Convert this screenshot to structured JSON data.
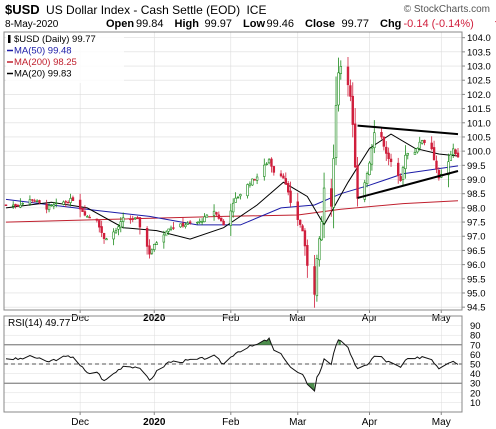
{
  "header": {
    "symbol": "$USD",
    "name": "US Dollar Index - Cash Settle (EOD)",
    "exchange": "ICE",
    "date": "8-May-2020",
    "ohlc": [
      {
        "label": "Open",
        "value": "99.84"
      },
      {
        "label": "High",
        "value": "99.97"
      },
      {
        "label": "Low",
        "value": "99.46"
      },
      {
        "label": "Close",
        "value": "99.77"
      },
      {
        "label": "Chg",
        "value": "-0.14 (-0.14%)"
      }
    ],
    "chg_direction": "down",
    "watermark": "© StockCharts.com"
  },
  "legend": [
    {
      "label": "$USD (Daily) 99.77",
      "color": "#000000",
      "swatch": "candle"
    },
    {
      "label": "MA(50) 99.48",
      "color": "#1c1ca8",
      "swatch": "line"
    },
    {
      "label": "MA(200) 98.25",
      "color": "#c0202e",
      "swatch": "line"
    },
    {
      "label": "MA(20) 99.83",
      "color": "#000000",
      "swatch": "line"
    }
  ],
  "colors": {
    "up": "#1a8a1a",
    "down": "#d01e3c",
    "ma50": "#1c1ca8",
    "ma200": "#c0202e",
    "ma20": "#000000",
    "rsi": "#111111",
    "rsi_fill": "#2e7a2e",
    "grid": "#dcdcdc"
  },
  "x_axis": {
    "labels": [
      {
        "text": "Dec",
        "x": "2019-12-02",
        "bold": false
      },
      {
        "text": "2020",
        "x": "2020-01-02",
        "bold": true
      },
      {
        "text": "Feb",
        "x": "2020-02-03",
        "bold": false
      },
      {
        "text": "Mar",
        "x": "2020-03-02",
        "bold": false
      },
      {
        "text": "Apr",
        "x": "2020-04-01",
        "bold": false
      },
      {
        "text": "May",
        "x": "2020-05-01",
        "bold": false
      }
    ]
  },
  "chart_data": [
    {
      "type": "candlestick",
      "title": "$USD (Daily) 99.77",
      "x_range": [
        "2019-11-01",
        "2020-05-08"
      ],
      "ylim": [
        94.4,
        104.2
      ],
      "y_ticks": [
        94.5,
        95.0,
        95.5,
        96.0,
        96.5,
        97.0,
        97.5,
        98.0,
        98.5,
        99.0,
        99.5,
        100.0,
        100.5,
        101.0,
        101.5,
        102.0,
        102.5,
        103.0,
        103.5,
        104.0
      ],
      "y_tick_labels": [
        "94.5",
        "95.0",
        "95.5",
        "96.0",
        "96.5",
        "97.0",
        "97.5",
        "98.0",
        "98.5",
        "99.0",
        "99.5",
        "100.0",
        "100.5",
        "101.0",
        "101.5",
        "102.0",
        "102.5",
        "103.0",
        "103.5",
        "104.0"
      ],
      "grid": true,
      "close_path": [
        [
          "2019-11-01",
          98.1
        ],
        [
          "2019-11-06",
          98.1
        ],
        [
          "2019-11-12",
          98.3
        ],
        [
          "2019-11-18",
          98.0
        ],
        [
          "2019-11-25",
          98.2
        ],
        [
          "2019-11-29",
          98.3
        ],
        [
          "2019-12-05",
          97.7
        ],
        [
          "2019-12-09",
          97.6
        ],
        [
          "2019-12-12",
          96.9
        ],
        [
          "2019-12-17",
          97.2
        ],
        [
          "2019-12-20",
          97.6
        ],
        [
          "2019-12-26",
          97.6
        ],
        [
          "2019-12-31",
          96.4
        ],
        [
          "2020-01-03",
          96.8
        ],
        [
          "2020-01-08",
          97.3
        ],
        [
          "2020-01-14",
          97.4
        ],
        [
          "2020-01-21",
          97.5
        ],
        [
          "2020-01-27",
          97.9
        ],
        [
          "2020-01-31",
          97.4
        ],
        [
          "2020-02-05",
          98.3
        ],
        [
          "2020-02-11",
          98.9
        ],
        [
          "2020-02-14",
          99.1
        ],
        [
          "2020-02-19",
          99.7
        ],
        [
          "2020-02-21",
          99.3
        ],
        [
          "2020-02-25",
          99.1
        ],
        [
          "2020-02-28",
          98.2
        ],
        [
          "2020-03-04",
          97.2
        ],
        [
          "2020-03-06",
          96.0
        ],
        [
          "2020-03-09",
          95.0
        ],
        [
          "2020-03-10",
          96.2
        ],
        [
          "2020-03-12",
          97.5
        ],
        [
          "2020-03-13",
          98.7
        ],
        [
          "2020-03-16",
          98.0
        ],
        [
          "2020-03-17",
          99.8
        ],
        [
          "2020-03-18",
          101.6
        ],
        [
          "2020-03-19",
          102.8
        ],
        [
          "2020-03-20",
          103.0
        ],
        [
          "2020-03-23",
          102.4
        ],
        [
          "2020-03-24",
          101.9
        ],
        [
          "2020-03-25",
          100.9
        ],
        [
          "2020-03-26",
          99.4
        ],
        [
          "2020-03-27",
          98.3
        ],
        [
          "2020-03-30",
          98.9
        ],
        [
          "2020-04-01",
          99.6
        ],
        [
          "2020-04-03",
          100.7
        ],
        [
          "2020-04-06",
          100.5
        ],
        [
          "2020-04-08",
          99.9
        ],
        [
          "2020-04-10",
          99.6
        ],
        [
          "2020-04-14",
          98.9
        ],
        [
          "2020-04-16",
          99.9
        ],
        [
          "2020-04-20",
          100.0
        ],
        [
          "2020-04-23",
          100.4
        ],
        [
          "2020-04-27",
          100.1
        ],
        [
          "2020-04-30",
          99.0
        ],
        [
          "2020-05-04",
          99.6
        ],
        [
          "2020-05-06",
          100.1
        ],
        [
          "2020-05-08",
          99.77
        ]
      ],
      "ma50_path": [
        [
          "2019-11-01",
          98.3
        ],
        [
          "2019-11-20",
          98.1
        ],
        [
          "2019-12-10",
          97.9
        ],
        [
          "2019-12-31",
          97.7
        ],
        [
          "2020-01-20",
          97.4
        ],
        [
          "2020-02-07",
          97.4
        ],
        [
          "2020-02-24",
          98.0
        ],
        [
          "2020-03-09",
          98.1
        ],
        [
          "2020-03-20",
          98.5
        ],
        [
          "2020-04-01",
          98.8
        ],
        [
          "2020-04-15",
          99.2
        ],
        [
          "2020-05-08",
          99.48
        ]
      ],
      "ma200_path": [
        [
          "2019-11-01",
          97.5
        ],
        [
          "2019-12-16",
          97.6
        ],
        [
          "2020-01-31",
          97.7
        ],
        [
          "2020-03-02",
          97.75
        ],
        [
          "2020-03-20",
          97.95
        ],
        [
          "2020-04-15",
          98.15
        ],
        [
          "2020-05-08",
          98.25
        ]
      ],
      "ma20_path": [
        [
          "2019-11-01",
          98.0
        ],
        [
          "2019-11-20",
          98.2
        ],
        [
          "2019-12-05",
          98.0
        ],
        [
          "2019-12-20",
          97.3
        ],
        [
          "2020-01-03",
          97.2
        ],
        [
          "2020-01-17",
          96.9
        ],
        [
          "2020-01-31",
          97.3
        ],
        [
          "2020-02-14",
          98.1
        ],
        [
          "2020-02-25",
          98.9
        ],
        [
          "2020-03-06",
          98.4
        ],
        [
          "2020-03-13",
          97.4
        ],
        [
          "2020-03-23",
          98.9
        ],
        [
          "2020-04-01",
          100.1
        ],
        [
          "2020-04-10",
          100.6
        ],
        [
          "2020-04-20",
          100.1
        ],
        [
          "2020-04-30",
          99.9
        ],
        [
          "2020-05-08",
          99.83
        ]
      ],
      "trendlines": [
        {
          "from": [
            "2020-03-27",
            100.9
          ],
          "to": [
            "2020-05-08",
            100.6
          ]
        },
        {
          "from": [
            "2020-03-27",
            98.35
          ],
          "to": [
            "2020-05-08",
            99.3
          ]
        }
      ]
    },
    {
      "type": "line",
      "title": "RSI(14) 49.77",
      "x_range": [
        "2019-11-01",
        "2020-05-08"
      ],
      "ylim": [
        0,
        100
      ],
      "y_ticks": [
        10,
        20,
        30,
        40,
        50,
        60,
        70,
        80,
        90
      ],
      "y_tick_labels": [
        "10",
        "20",
        "30",
        "40",
        "50",
        "60",
        "70",
        "80",
        "90"
      ],
      "reference_lines": [
        30,
        50,
        70
      ],
      "grid": true,
      "rsi_path": [
        [
          "2019-11-01",
          56
        ],
        [
          "2019-11-06",
          55
        ],
        [
          "2019-11-12",
          58
        ],
        [
          "2019-11-18",
          52
        ],
        [
          "2019-11-25",
          57
        ],
        [
          "2019-11-29",
          58
        ],
        [
          "2019-12-05",
          40
        ],
        [
          "2019-12-09",
          42
        ],
        [
          "2019-12-12",
          32
        ],
        [
          "2019-12-17",
          42
        ],
        [
          "2019-12-20",
          48
        ],
        [
          "2019-12-26",
          47
        ],
        [
          "2019-12-31",
          33
        ],
        [
          "2020-01-03",
          42
        ],
        [
          "2020-01-08",
          52
        ],
        [
          "2020-01-14",
          53
        ],
        [
          "2020-01-21",
          55
        ],
        [
          "2020-01-27",
          58
        ],
        [
          "2020-01-31",
          50
        ],
        [
          "2020-02-05",
          62
        ],
        [
          "2020-02-11",
          68
        ],
        [
          "2020-02-14",
          70
        ],
        [
          "2020-02-19",
          76
        ],
        [
          "2020-02-21",
          64
        ],
        [
          "2020-02-25",
          58
        ],
        [
          "2020-02-28",
          46
        ],
        [
          "2020-03-04",
          38
        ],
        [
          "2020-03-06",
          30
        ],
        [
          "2020-03-09",
          23
        ],
        [
          "2020-03-10",
          36
        ],
        [
          "2020-03-12",
          46
        ],
        [
          "2020-03-13",
          56
        ],
        [
          "2020-03-16",
          50
        ],
        [
          "2020-03-17",
          62
        ],
        [
          "2020-03-18",
          70
        ],
        [
          "2020-03-19",
          74
        ],
        [
          "2020-03-20",
          73
        ],
        [
          "2020-03-23",
          66
        ],
        [
          "2020-03-24",
          61
        ],
        [
          "2020-03-25",
          56
        ],
        [
          "2020-03-26",
          48
        ],
        [
          "2020-03-27",
          44
        ],
        [
          "2020-03-30",
          48
        ],
        [
          "2020-04-01",
          52
        ],
        [
          "2020-04-03",
          58
        ],
        [
          "2020-04-06",
          57
        ],
        [
          "2020-04-08",
          53
        ],
        [
          "2020-04-10",
          51
        ],
        [
          "2020-04-14",
          46
        ],
        [
          "2020-04-16",
          54
        ],
        [
          "2020-04-20",
          55
        ],
        [
          "2020-04-23",
          58
        ],
        [
          "2020-04-27",
          55
        ],
        [
          "2020-04-30",
          46
        ],
        [
          "2020-05-04",
          52
        ],
        [
          "2020-05-06",
          54
        ],
        [
          "2020-05-08",
          49.77
        ]
      ]
    }
  ]
}
